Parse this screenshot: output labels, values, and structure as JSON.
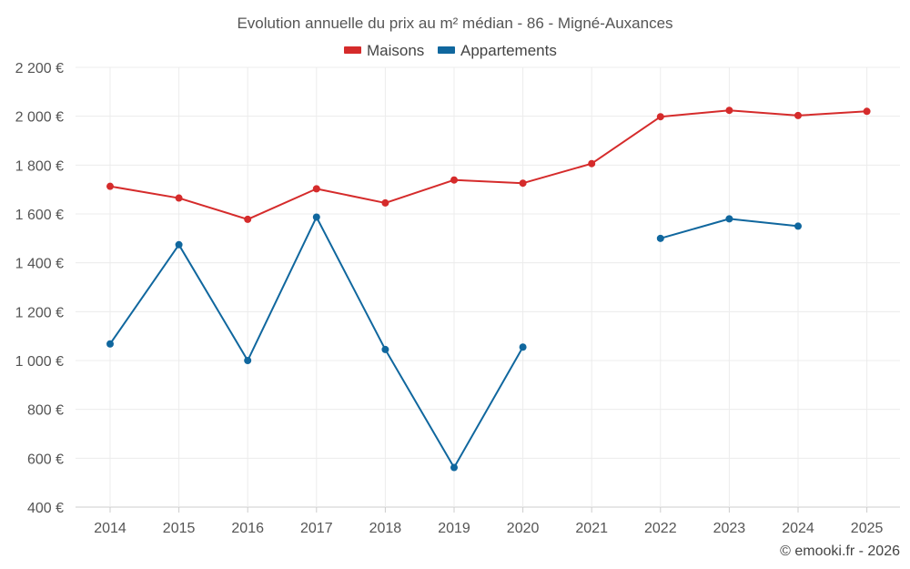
{
  "chart_data": {
    "type": "line",
    "title": "Evolution annuelle du prix au m² médian - 86 - Migné-Auxances",
    "categories": [
      "2014",
      "2015",
      "2016",
      "2017",
      "2018",
      "2019",
      "2020",
      "2021",
      "2022",
      "2023",
      "2024",
      "2025"
    ],
    "y_ticks": [
      400,
      600,
      800,
      1000,
      1200,
      1400,
      1600,
      1800,
      2000,
      2200
    ],
    "y_tick_labels": [
      "400 €",
      "600 €",
      "800 €",
      "1 000 €",
      "1 200 €",
      "1 400 €",
      "1 600 €",
      "1 800 €",
      "2 000 €",
      "2 200 €"
    ],
    "ylim": [
      400,
      2200
    ],
    "xlabel": "",
    "ylabel": "",
    "grid": true,
    "legend_position": "top-center",
    "series": [
      {
        "name": "Maisons",
        "color": "#d52b2b",
        "values": [
          1713,
          1665,
          1578,
          1703,
          1645,
          1739,
          1726,
          1806,
          1998,
          2024,
          2003,
          2020
        ]
      },
      {
        "name": "Appartements",
        "color": "#10679e",
        "values": [
          1068,
          1474,
          1000,
          1587,
          1045,
          562,
          1055,
          null,
          1500,
          1580,
          1550,
          null
        ]
      }
    ],
    "credit": "© emooki.fr - 2026"
  }
}
